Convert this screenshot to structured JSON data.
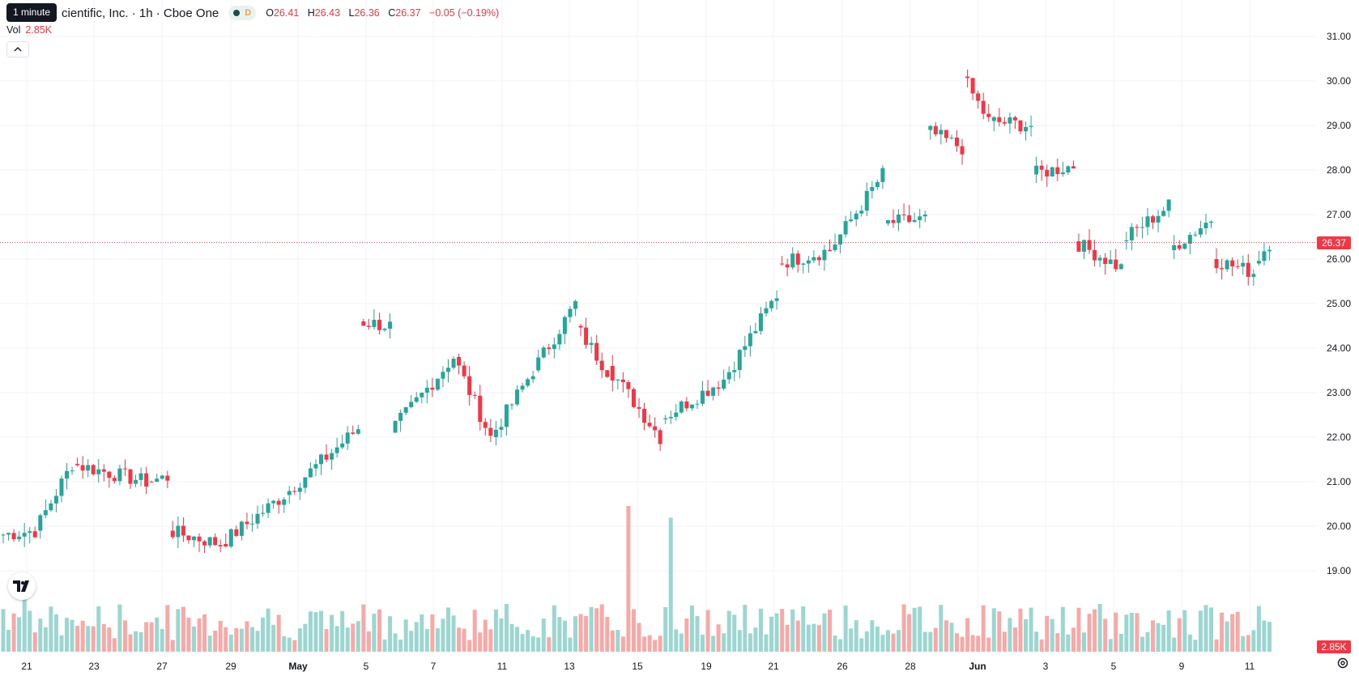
{
  "legend": {
    "title": "cientific, Inc. · 1h · Cboe One",
    "status_letter": "D",
    "open_label": "O",
    "open": "26.41",
    "high_label": "H",
    "high": "26.43",
    "low_label": "L",
    "low": "26.36",
    "close_label": "C",
    "close": "26.37",
    "change": "−0.05 (−0.19%)"
  },
  "tooltip": "1 minute",
  "volume_legend": {
    "label": "Vol",
    "value": "2.85K"
  },
  "price_tags": {
    "last_price": "26.37",
    "last_volume": "2.85K"
  },
  "colors": {
    "up": "#26a69a",
    "down": "#f23645",
    "vol_up": "#9bd7d0",
    "vol_down": "#f7a9a7",
    "grid": "#f0f3fa",
    "axis_text": "#131722"
  },
  "icons": {
    "collapse": "chevron-up-icon",
    "logo": "tradingview-logo-icon",
    "settings": "gear-icon"
  },
  "chart_data": {
    "type": "candlestick",
    "timeframe": "1h",
    "y_axis": {
      "min": 18.4,
      "max": 31.4,
      "ticks": [
        19.0,
        20.0,
        21.0,
        22.0,
        23.0,
        24.0,
        25.0,
        26.0,
        27.0,
        28.0,
        29.0,
        30.0,
        31.0
      ],
      "tick_labels": [
        "19.00",
        "20.00",
        "21.00",
        "22.00",
        "23.00",
        "24.00",
        "25.00",
        "26.00",
        "27.00",
        "28.00",
        "29.00",
        "30.00",
        "31.00"
      ]
    },
    "x_axis": {
      "labels": [
        "21",
        "23",
        "27",
        "29",
        "May",
        "5",
        "7",
        "11",
        "13",
        "15",
        "19",
        "21",
        "26",
        "28",
        "Jun",
        "3",
        "5",
        "9",
        "11"
      ]
    },
    "last_price": 26.37,
    "segments": [
      {
        "n": 7,
        "start": 19.8,
        "end": 19.9
      },
      {
        "n": 7,
        "start": 19.9,
        "end": 21.4
      },
      {
        "n": 14,
        "start": 21.4,
        "end": 21.0
      },
      {
        "n": 4,
        "start": 21.0,
        "end": 21.1
      },
      {
        "n": 10,
        "start": 19.9,
        "end": 19.6
      },
      {
        "n": 12,
        "start": 19.6,
        "end": 20.7
      },
      {
        "n": 14,
        "start": 20.7,
        "end": 22.2
      },
      {
        "n": 6,
        "start": 24.6,
        "end": 24.5
      },
      {
        "n": 12,
        "start": 22.1,
        "end": 23.8
      },
      {
        "n": 7,
        "start": 23.8,
        "end": 22.0
      },
      {
        "n": 8,
        "start": 22.0,
        "end": 23.5
      },
      {
        "n": 8,
        "start": 23.5,
        "end": 25.0
      },
      {
        "n": 6,
        "start": 24.5,
        "end": 23.5
      },
      {
        "n": 10,
        "start": 23.6,
        "end": 22.0
      },
      {
        "n": 12,
        "start": 22.4,
        "end": 23.3
      },
      {
        "n": 10,
        "start": 23.3,
        "end": 25.2
      },
      {
        "n": 10,
        "start": 25.9,
        "end": 26.2
      },
      {
        "n": 10,
        "start": 26.2,
        "end": 27.9
      },
      {
        "n": 8,
        "start": 26.8,
        "end": 26.9
      },
      {
        "n": 7,
        "start": 28.9,
        "end": 28.5
      },
      {
        "n": 5,
        "start": 30.1,
        "end": 29.1
      },
      {
        "n": 8,
        "start": 29.1,
        "end": 29.0
      },
      {
        "n": 8,
        "start": 27.9,
        "end": 28.1
      },
      {
        "n": 9,
        "start": 26.4,
        "end": 25.8
      },
      {
        "n": 9,
        "start": 26.4,
        "end": 27.2
      },
      {
        "n": 8,
        "start": 26.2,
        "end": 26.9
      },
      {
        "n": 8,
        "start": 26.0,
        "end": 25.7
      },
      {
        "n": 3,
        "start": 25.9,
        "end": 26.37
      }
    ],
    "volume_spikes": [
      {
        "index": 118,
        "value": 1.0,
        "direction": "up"
      },
      {
        "index": 126,
        "value": 0.92,
        "direction": "down"
      },
      {
        "index": 4,
        "value": 0.45,
        "direction": "down"
      }
    ]
  }
}
